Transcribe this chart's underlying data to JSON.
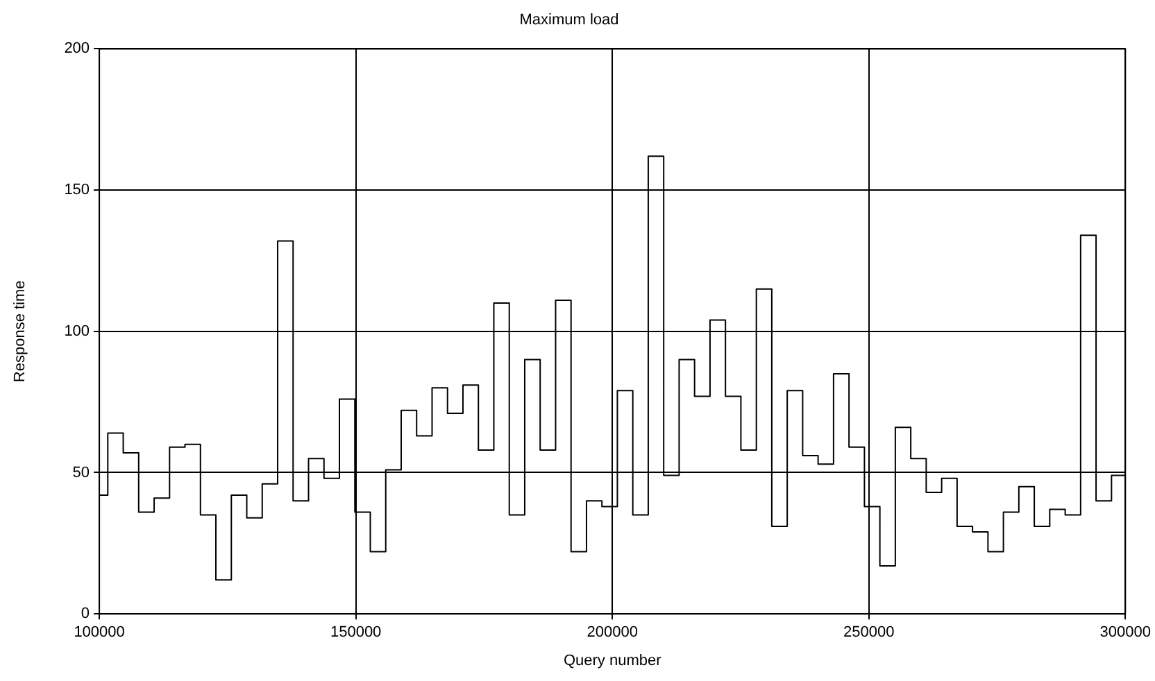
{
  "chart_data": {
    "type": "step",
    "title": "Maximum load",
    "xlabel": "Query number",
    "ylabel": "Response time",
    "x": [
      100000,
      101650,
      104660,
      107670,
      110680,
      113690,
      116700,
      119710,
      122720,
      125730,
      128740,
      131750,
      134760,
      137770,
      140780,
      143790,
      146800,
      149810,
      152820,
      155830,
      158840,
      161850,
      164860,
      167870,
      170880,
      173890,
      176900,
      179910,
      182920,
      185930,
      188940,
      191950,
      194960,
      197970,
      200980,
      203990,
      207000,
      210010,
      213020,
      216030,
      219040,
      222050,
      225060,
      228070,
      231080,
      234090,
      237100,
      240110,
      243120,
      246130,
      249140,
      252150,
      255160,
      258170,
      261180,
      264190,
      267200,
      270210,
      273220,
      276230,
      279240,
      282250,
      285260,
      288270,
      291280,
      294290,
      297300,
      300000
    ],
    "series": [
      {
        "color": "#000000",
        "values": [
          42,
          64,
          57,
          36,
          41,
          59,
          60,
          35,
          12,
          42,
          34,
          46,
          132,
          40,
          55,
          48,
          76,
          36,
          22,
          51,
          72,
          63,
          80,
          71,
          81,
          58,
          110,
          35,
          90,
          58,
          111,
          22,
          40,
          38,
          79,
          35,
          162,
          49,
          90,
          77,
          104,
          77,
          58,
          115,
          31,
          79,
          56,
          53,
          85,
          59,
          38,
          17,
          66,
          55,
          43,
          48,
          31,
          29,
          22,
          36,
          45,
          31,
          37,
          35,
          134,
          40,
          49,
          49
        ]
      }
    ],
    "xlim": [
      100000,
      300000
    ],
    "xticks": [
      100000,
      150000,
      200000,
      250000,
      300000
    ],
    "ylim": [
      0,
      200
    ],
    "yticks": [
      0,
      50,
      100,
      150,
      200
    ],
    "grid": true,
    "legend": false,
    "marker": "none",
    "line_style": "solid"
  }
}
